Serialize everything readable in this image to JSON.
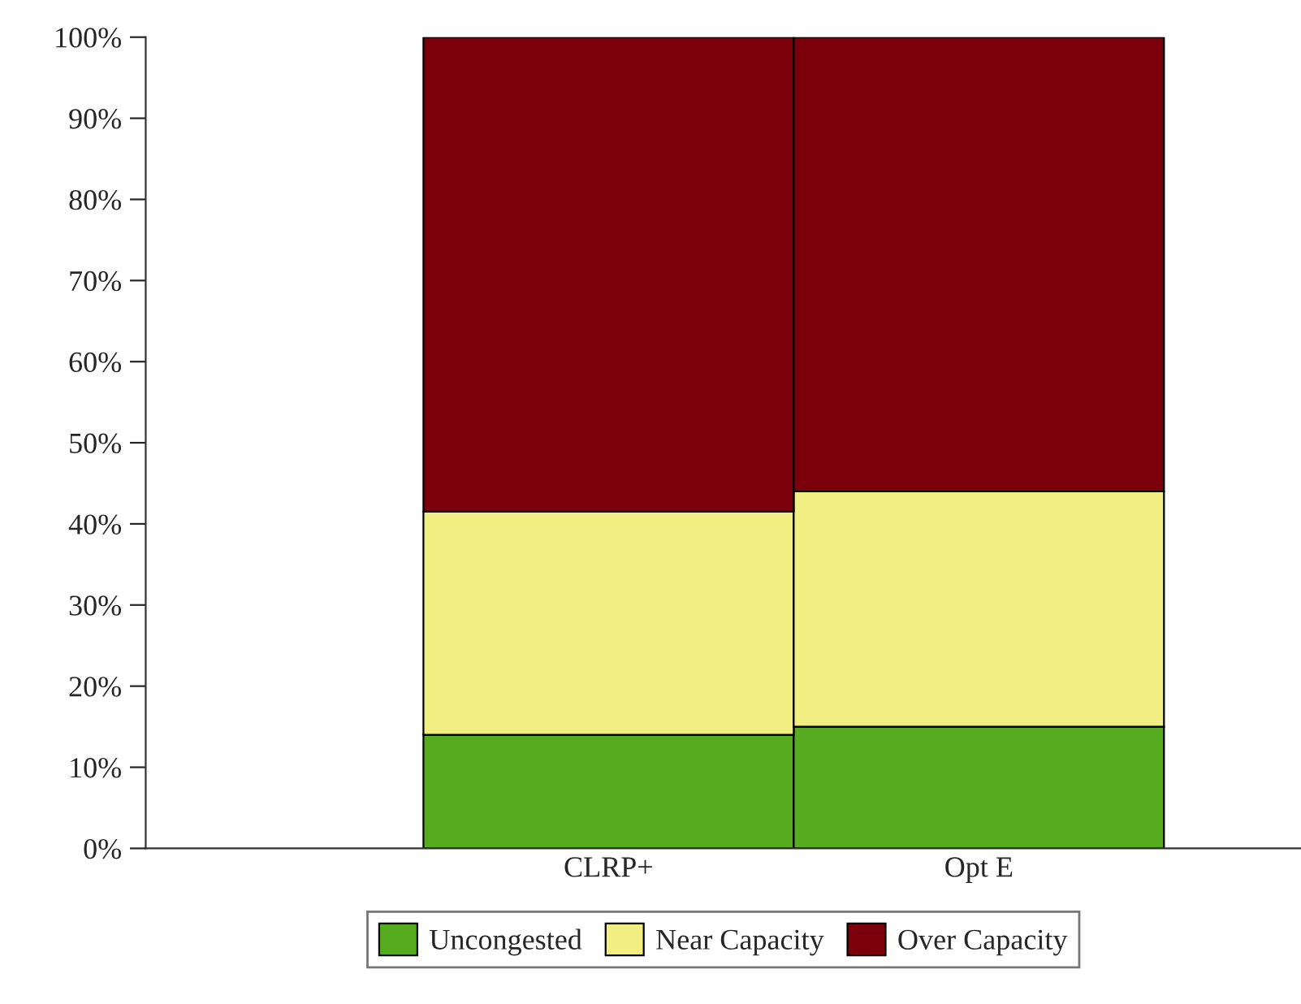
{
  "chart_data": {
    "type": "bar",
    "stacked": true,
    "categories": [
      "CLRP+",
      "Opt E"
    ],
    "series": [
      {
        "name": "Uncongested",
        "color": "#56ac1e",
        "values": [
          14,
          15
        ]
      },
      {
        "name": "Near Capacity",
        "color": "#f2ef82",
        "values": [
          27.5,
          29
        ]
      },
      {
        "name": "Over Capacity",
        "color": "#7b000b",
        "values": [
          58.5,
          56
        ]
      }
    ],
    "ylim": [
      0,
      100
    ],
    "yticks": [
      {
        "value": 0,
        "label": "0%"
      },
      {
        "value": 10,
        "label": "10%"
      },
      {
        "value": 20,
        "label": "20%"
      },
      {
        "value": 30,
        "label": "30%"
      },
      {
        "value": 40,
        "label": "40%"
      },
      {
        "value": 50,
        "label": "50%"
      },
      {
        "value": 60,
        "label": "60%"
      },
      {
        "value": 70,
        "label": "70%"
      },
      {
        "value": 80,
        "label": "80%"
      },
      {
        "value": 90,
        "label": "90%"
      },
      {
        "value": 100,
        "label": "100%"
      }
    ],
    "grid": false,
    "legend": "bottom"
  }
}
